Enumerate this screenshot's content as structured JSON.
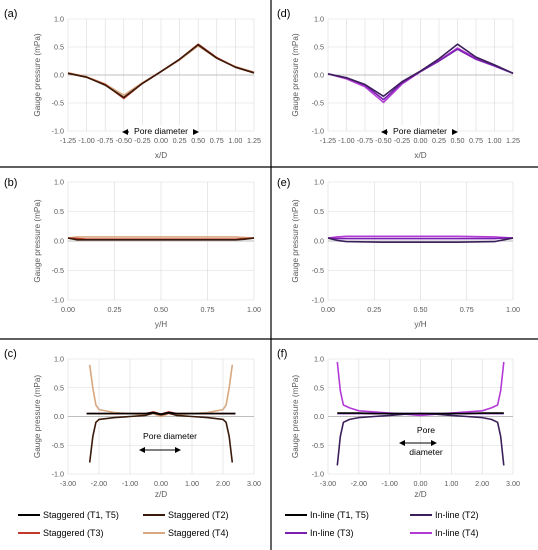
{
  "panels": [
    {
      "id": "a",
      "label": "(a)"
    },
    {
      "id": "b",
      "label": "(b)"
    },
    {
      "id": "c",
      "label": "(c)"
    },
    {
      "id": "d",
      "label": "(d)"
    },
    {
      "id": "e",
      "label": "(e)"
    },
    {
      "id": "f",
      "label": "(f)"
    }
  ],
  "annotations": {
    "pore_diameter": "Pore diameter",
    "pore": "Pore",
    "diameter": "diameter"
  },
  "colors": {
    "stag_T1T5": "#000000",
    "stag_T2": "#3a1a0a",
    "stag_T3": "#c0392b",
    "stag_T4": "#d9a77f",
    "inl_T1T5": "#000000",
    "inl_T2": "#3c1f5a",
    "inl_T3": "#7a1fb0",
    "inl_T4": "#b23bd6",
    "axis": "#bfbfbf",
    "grid": "#d9d9d9"
  },
  "chart_data": [
    {
      "id": "a",
      "type": "line",
      "title": "",
      "xlabel": "x/D",
      "ylabel": "Gauge pressure (mPa)",
      "xlim": [
        -1.25,
        1.25
      ],
      "ylim": [
        -1.0,
        1.0
      ],
      "xticks": [
        "-1.25",
        "-1.00",
        "-0.75",
        "-0.50",
        "-0.25",
        "0.00",
        "0.25",
        "0.50",
        "0.75",
        "1.00",
        "1.25"
      ],
      "yticks": [
        "-1.0",
        "-0.5",
        "0.0",
        "0.5",
        "1.0"
      ],
      "grid": true,
      "series": [
        {
          "color_key": "stag_T4",
          "x": [
            -1.25,
            -1.0,
            -0.75,
            -0.5,
            -0.25,
            0.0,
            0.25,
            0.5,
            0.75,
            1.0,
            1.25
          ],
          "y": [
            0.04,
            -0.03,
            -0.16,
            -0.36,
            -0.14,
            0.06,
            0.27,
            0.52,
            0.3,
            0.15,
            0.05
          ]
        },
        {
          "color_key": "stag_T3",
          "x": [
            -1.25,
            -1.0,
            -0.75,
            -0.5,
            -0.25,
            0.0,
            0.25,
            0.5,
            0.75,
            1.0,
            1.25
          ],
          "y": [
            0.03,
            -0.04,
            -0.17,
            -0.42,
            -0.15,
            0.06,
            0.28,
            0.55,
            0.31,
            0.14,
            0.04
          ]
        },
        {
          "color_key": "stag_T2",
          "x": [
            -1.25,
            -1.0,
            -0.75,
            -0.5,
            -0.25,
            0.0,
            0.25,
            0.5,
            0.75,
            1.0,
            1.25
          ],
          "y": [
            0.03,
            -0.04,
            -0.18,
            -0.4,
            -0.15,
            0.06,
            0.28,
            0.54,
            0.3,
            0.14,
            0.04
          ]
        }
      ]
    },
    {
      "id": "b",
      "type": "line",
      "title": "",
      "xlabel": "y/H",
      "ylabel": "Gauge pressure (mPa)",
      "xlim": [
        0.0,
        1.0
      ],
      "ylim": [
        -1.0,
        1.0
      ],
      "xticks": [
        "0.00",
        "0.25",
        "0.50",
        "0.75",
        "1.00"
      ],
      "yticks": [
        "-1.0",
        "-0.5",
        "0.0",
        "0.5",
        "1.0"
      ],
      "grid": true,
      "series": [
        {
          "color_key": "stag_T4",
          "x": [
            0.0,
            0.05,
            0.1,
            0.3,
            0.5,
            0.7,
            0.9,
            0.95,
            1.0
          ],
          "y": [
            0.05,
            0.07,
            0.07,
            0.07,
            0.07,
            0.07,
            0.07,
            0.06,
            0.05
          ]
        },
        {
          "color_key": "stag_T3",
          "x": [
            0.0,
            0.05,
            0.1,
            0.3,
            0.5,
            0.7,
            0.9,
            0.95,
            1.0
          ],
          "y": [
            0.05,
            0.04,
            0.03,
            0.03,
            0.03,
            0.03,
            0.03,
            0.04,
            0.05
          ]
        },
        {
          "color_key": "stag_T2",
          "x": [
            0.0,
            0.05,
            0.1,
            0.3,
            0.5,
            0.7,
            0.9,
            0.95,
            1.0
          ],
          "y": [
            0.05,
            0.02,
            0.02,
            0.02,
            0.02,
            0.02,
            0.02,
            0.03,
            0.05
          ]
        }
      ]
    },
    {
      "id": "c",
      "type": "line",
      "title": "",
      "xlabel": "z/D",
      "ylabel": "Gauge pressure (mPa)",
      "xlim": [
        -3.0,
        3.0
      ],
      "ylim": [
        -1.0,
        1.0
      ],
      "xticks": [
        "-3.00",
        "-2.00",
        "-1.00",
        "0.00",
        "1.00",
        "2.00",
        "3.00"
      ],
      "yticks": [
        "-1.0",
        "-0.5",
        "0.0",
        "0.5",
        "1.0"
      ],
      "grid": true,
      "series": [
        {
          "color_key": "stag_T3",
          "x": [
            -2.4,
            -2.3,
            -2.2,
            -2.0,
            -1.5,
            -1.0,
            -0.5,
            -0.25,
            0.0,
            0.25,
            0.5,
            1.0,
            1.5,
            2.0,
            2.2,
            2.3,
            2.4
          ],
          "y": [
            0.05,
            0.05,
            0.05,
            0.05,
            0.05,
            0.05,
            0.05,
            0.08,
            0.04,
            0.08,
            0.05,
            0.05,
            0.05,
            0.05,
            0.05,
            0.05,
            0.05
          ]
        },
        {
          "color_key": "stag_T4",
          "x": [
            -2.3,
            -2.2,
            -2.1,
            -2.0,
            -1.5,
            -1.0,
            -0.5,
            -0.25,
            0.0,
            0.25,
            0.5,
            1.0,
            1.5,
            2.0,
            2.1,
            2.2,
            2.3
          ],
          "y": [
            0.9,
            0.5,
            0.2,
            0.12,
            0.07,
            0.05,
            0.03,
            0.05,
            0.0,
            0.05,
            0.03,
            0.05,
            0.07,
            0.12,
            0.2,
            0.5,
            0.9
          ]
        },
        {
          "color_key": "stag_T2",
          "x": [
            -2.3,
            -2.2,
            -2.1,
            -2.0,
            -1.5,
            -1.0,
            -0.5,
            -0.25,
            0.0,
            0.25,
            0.5,
            1.0,
            1.5,
            2.0,
            2.1,
            2.2,
            2.3
          ],
          "y": [
            -0.8,
            -0.35,
            -0.1,
            -0.05,
            -0.02,
            0.0,
            0.02,
            0.06,
            0.03,
            0.06,
            0.02,
            0.0,
            -0.02,
            -0.05,
            -0.1,
            -0.35,
            -0.8
          ]
        },
        {
          "color_key": "stag_T1T5",
          "x": [
            -2.4,
            -2.0,
            -1.5,
            -1.0,
            -0.5,
            -0.25,
            0.0,
            0.25,
            0.5,
            1.0,
            1.5,
            2.0,
            2.4
          ],
          "y": [
            0.05,
            0.05,
            0.05,
            0.05,
            0.05,
            0.07,
            0.04,
            0.07,
            0.05,
            0.05,
            0.05,
            0.05,
            0.05
          ]
        }
      ]
    },
    {
      "id": "d",
      "type": "line",
      "title": "",
      "xlabel": "x/D",
      "ylabel": "Gauge pressure (mPa)",
      "xlim": [
        -1.25,
        1.25
      ],
      "ylim": [
        -1.0,
        1.0
      ],
      "xticks": [
        "-1.25",
        "-1.00",
        "-0.75",
        "-0.50",
        "-0.25",
        "0.00",
        "0.25",
        "0.50",
        "0.75",
        "1.00",
        "1.25"
      ],
      "yticks": [
        "-1.0",
        "-0.5",
        "0.0",
        "0.5",
        "1.0"
      ],
      "grid": true,
      "series": [
        {
          "color_key": "inl_T4",
          "x": [
            -1.25,
            -1.0,
            -0.75,
            -0.5,
            -0.25,
            0.0,
            0.25,
            0.5,
            0.75,
            1.0,
            1.25
          ],
          "y": [
            0.02,
            -0.07,
            -0.21,
            -0.49,
            -0.16,
            0.06,
            0.26,
            0.48,
            0.3,
            0.17,
            0.03
          ]
        },
        {
          "color_key": "inl_T3",
          "x": [
            -1.25,
            -1.0,
            -0.75,
            -0.5,
            -0.25,
            0.0,
            0.25,
            0.5,
            0.75,
            1.0,
            1.25
          ],
          "y": [
            0.02,
            -0.05,
            -0.18,
            -0.44,
            -0.14,
            0.06,
            0.25,
            0.46,
            0.28,
            0.16,
            0.03
          ]
        },
        {
          "color_key": "inl_T2",
          "x": [
            -1.25,
            -1.0,
            -0.75,
            -0.5,
            -0.25,
            0.0,
            0.25,
            0.5,
            0.75,
            1.0,
            1.25
          ],
          "y": [
            0.02,
            -0.05,
            -0.17,
            -0.38,
            -0.12,
            0.07,
            0.29,
            0.55,
            0.32,
            0.18,
            0.03
          ]
        }
      ]
    },
    {
      "id": "e",
      "type": "line",
      "title": "",
      "xlabel": "y/H",
      "ylabel": "Gauge pressure (mPa)",
      "xlim": [
        0.0,
        1.0
      ],
      "ylim": [
        -1.0,
        1.0
      ],
      "xticks": [
        "0.00",
        "0.25",
        "0.50",
        "0.75",
        "1.00"
      ],
      "yticks": [
        "-1.0",
        "-0.5",
        "0.0",
        "0.5",
        "1.0"
      ],
      "grid": true,
      "series": [
        {
          "color_key": "inl_T4",
          "x": [
            0.0,
            0.05,
            0.1,
            0.3,
            0.5,
            0.7,
            0.9,
            0.95,
            1.0
          ],
          "y": [
            0.05,
            0.07,
            0.08,
            0.08,
            0.08,
            0.08,
            0.07,
            0.06,
            0.05
          ]
        },
        {
          "color_key": "inl_T3",
          "x": [
            0.0,
            0.05,
            0.1,
            0.3,
            0.5,
            0.7,
            0.9,
            0.95,
            1.0
          ],
          "y": [
            0.05,
            0.04,
            0.04,
            0.04,
            0.04,
            0.04,
            0.04,
            0.05,
            0.05
          ]
        },
        {
          "color_key": "inl_T2",
          "x": [
            0.0,
            0.05,
            0.1,
            0.3,
            0.5,
            0.7,
            0.9,
            0.95,
            1.0
          ],
          "y": [
            0.05,
            0.01,
            -0.01,
            -0.02,
            -0.02,
            -0.02,
            -0.01,
            0.02,
            0.05
          ]
        }
      ]
    },
    {
      "id": "f",
      "type": "line",
      "title": "",
      "xlabel": "z/D",
      "ylabel": "Gauge pressure (mPa)",
      "xlim": [
        -3.0,
        3.0
      ],
      "ylim": [
        -1.0,
        1.0
      ],
      "xticks": [
        "-3.00",
        "-2.00",
        "-1.00",
        "0.00",
        "1.00",
        "2.00",
        "3.00"
      ],
      "yticks": [
        "-1.0",
        "-0.5",
        "0.0",
        "0.5",
        "1.0"
      ],
      "grid": true,
      "series": [
        {
          "color_key": "inl_T4",
          "x": [
            -2.7,
            -2.6,
            -2.5,
            -2.3,
            -2.0,
            -1.5,
            -1.0,
            -0.5,
            0.0,
            0.5,
            1.0,
            1.5,
            2.0,
            2.3,
            2.5,
            2.6,
            2.7
          ],
          "y": [
            0.95,
            0.45,
            0.2,
            0.15,
            0.1,
            0.08,
            0.06,
            0.04,
            0.02,
            0.04,
            0.06,
            0.08,
            0.1,
            0.15,
            0.2,
            0.45,
            0.95
          ]
        },
        {
          "color_key": "inl_T2",
          "x": [
            -2.7,
            -2.6,
            -2.5,
            -2.3,
            -2.0,
            -1.5,
            -1.0,
            -0.5,
            0.0,
            0.5,
            1.0,
            1.5,
            2.0,
            2.3,
            2.5,
            2.6,
            2.7
          ],
          "y": [
            -0.85,
            -0.35,
            -0.1,
            -0.05,
            -0.02,
            0.0,
            0.02,
            0.04,
            0.05,
            0.04,
            0.02,
            0.0,
            -0.02,
            -0.05,
            -0.1,
            -0.35,
            -0.85
          ]
        },
        {
          "color_key": "inl_T3",
          "x": [
            -2.7,
            -2.3,
            -2.0,
            -1.5,
            -1.0,
            -0.5,
            0.0,
            0.5,
            1.0,
            1.5,
            2.0,
            2.3,
            2.7
          ],
          "y": [
            0.05,
            0.05,
            0.05,
            0.05,
            0.05,
            0.05,
            0.05,
            0.05,
            0.05,
            0.05,
            0.05,
            0.05,
            0.05
          ]
        },
        {
          "color_key": "inl_T1T5",
          "x": [
            -2.7,
            -2.3,
            -2.0,
            -1.5,
            -1.0,
            -0.5,
            0.0,
            0.5,
            1.0,
            1.5,
            2.0,
            2.3,
            2.7
          ],
          "y": [
            0.06,
            0.06,
            0.06,
            0.05,
            0.05,
            0.05,
            0.05,
            0.05,
            0.05,
            0.05,
            0.06,
            0.06,
            0.06
          ]
        }
      ]
    }
  ],
  "legends": {
    "left": [
      {
        "label": "Staggered (T1, T5)",
        "color_key": "stag_T1T5"
      },
      {
        "label": "Staggered (T2)",
        "color_key": "stag_T2"
      },
      {
        "label": "Staggered (T3)",
        "color_key": "stag_T3"
      },
      {
        "label": "Staggered (T4)",
        "color_key": "stag_T4"
      }
    ],
    "right": [
      {
        "label": "In-line (T1, T5)",
        "color_key": "inl_T1T5"
      },
      {
        "label": "In-line (T2)",
        "color_key": "inl_T2"
      },
      {
        "label": "In-line (T3)",
        "color_key": "inl_T3"
      },
      {
        "label": "In-line (T4)",
        "color_key": "inl_T4"
      }
    ]
  }
}
